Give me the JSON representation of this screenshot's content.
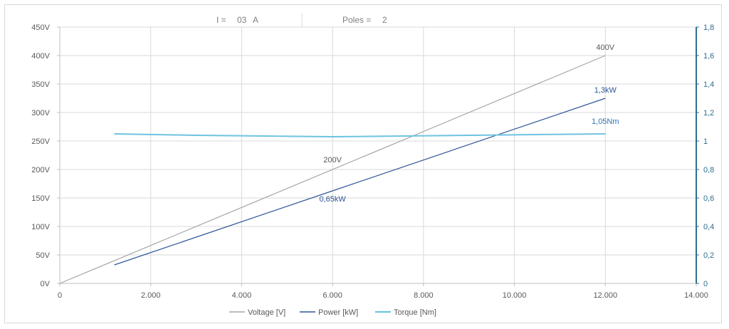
{
  "header": {
    "current_label": "I =",
    "current_value": "03",
    "current_unit": "A",
    "poles_label": "Poles =",
    "poles_value": "2"
  },
  "colors": {
    "voltage": "#a6a6a6",
    "power": "#2f5597",
    "torque": "#6ec3e0",
    "grid": "#d9d9d9",
    "right_axis": "#2e6e8e"
  },
  "chart_data": {
    "type": "line",
    "title": "",
    "xlabel": "",
    "ylabel": "",
    "xlim": [
      0,
      14000
    ],
    "ylim_left": [
      0,
      450
    ],
    "ylim_right": [
      0,
      1.8
    ],
    "grid": true,
    "legend_position": "bottom",
    "x_ticks": [
      "0",
      "2.000",
      "4.000",
      "6.000",
      "8.000",
      "10.000",
      "12.000",
      "14.000"
    ],
    "y_left_ticks": [
      "0V",
      "50V",
      "100V",
      "150V",
      "200V",
      "250V",
      "300V",
      "350V",
      "400V",
      "450V"
    ],
    "y_right_ticks": [
      "0",
      "0,2",
      "0,4",
      "0,6",
      "0,8",
      "1",
      "1,2",
      "1,4",
      "1,6",
      "1,8"
    ],
    "series": [
      {
        "name": "Voltage [V]",
        "axis": "left",
        "x": [
          0,
          12000
        ],
        "y": [
          0,
          400
        ]
      },
      {
        "name": "Power [kW]",
        "axis": "right",
        "x": [
          1200,
          6000,
          12000
        ],
        "y": [
          0.13,
          0.65,
          1.3
        ]
      },
      {
        "name": "Torque [Nm]",
        "axis": "right",
        "x": [
          1200,
          3000,
          6000,
          9000,
          12000
        ],
        "y": [
          1.05,
          1.04,
          1.03,
          1.04,
          1.05
        ]
      }
    ],
    "annotations": [
      {
        "text": "400V",
        "series": 0,
        "x": 12000,
        "y": 400
      },
      {
        "text": "200V",
        "series": 0,
        "x": 6000,
        "y": 200
      },
      {
        "text": "1,3kW",
        "series": 1,
        "x": 12000,
        "y": 1.3
      },
      {
        "text": "0,65kW",
        "series": 1,
        "x": 6000,
        "y": 0.65
      },
      {
        "text": "1,05Nm",
        "series": 2,
        "x": 12000,
        "y": 1.05
      }
    ]
  }
}
